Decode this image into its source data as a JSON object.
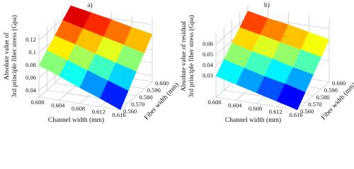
{
  "chart_data": [
    {
      "type": "surface",
      "title": "a)",
      "colormap": "jet",
      "xlabel": "Channel width (mm)",
      "ylabel": "Fiber width (mm)",
      "zlabel": [
        "Absolute value of",
        "3rd principle fiber stress (Gpa)"
      ],
      "x": [
        0.6,
        0.604,
        0.608,
        0.612,
        0.616
      ],
      "y": [
        0.56,
        0.57,
        0.58,
        0.59,
        0.6
      ],
      "z": [
        [
          0.08,
          0.068,
          0.055,
          0.043,
          0.03
        ],
        [
          0.093,
          0.082,
          0.071,
          0.06,
          0.049
        ],
        [
          0.105,
          0.096,
          0.086,
          0.077,
          0.068
        ],
        [
          0.118,
          0.11,
          0.102,
          0.094,
          0.086
        ],
        [
          0.13,
          0.124,
          0.118,
          0.111,
          0.105
        ]
      ],
      "xlim": [
        0.6,
        0.616
      ],
      "ylim": [
        0.56,
        0.6
      ],
      "zlim": [
        0.03,
        0.13
      ],
      "xticks": [
        {
          "value": 0.6,
          "label": "0.600"
        },
        {
          "value": 0.604,
          "label": "0.604"
        },
        {
          "value": 0.608,
          "label": "0.608"
        },
        {
          "value": 0.612,
          "label": "0.612"
        },
        {
          "value": 0.616,
          "label": "0.616"
        }
      ],
      "yticks": [
        {
          "value": 0.56,
          "label": "0.560"
        },
        {
          "value": 0.57,
          "label": "0.570"
        },
        {
          "value": 0.58,
          "label": "0.580"
        },
        {
          "value": 0.59,
          "label": "0.590"
        },
        {
          "value": 0.6,
          "label": "0.600"
        }
      ],
      "zticks": [
        0.04,
        0.06,
        0.08,
        0.1,
        0.12
      ]
    },
    {
      "type": "surface",
      "title": "b)",
      "colormap": "jet",
      "xlabel": "Channel width (mm)",
      "ylabel": "Fiber width (mm)",
      "zlabel": [
        "Absolute value of residual",
        "3rd principle fiber stress (Gpa)"
      ],
      "x": [
        0.6,
        0.604,
        0.608,
        0.612,
        0.616
      ],
      "y": [
        0.56,
        0.57,
        0.58,
        0.59,
        0.6
      ],
      "z": [
        [
          0.03,
          0.025,
          0.02,
          0.015,
          0.01
        ],
        [
          0.039,
          0.034,
          0.029,
          0.025,
          0.02
        ],
        [
          0.048,
          0.043,
          0.039,
          0.034,
          0.03
        ],
        [
          0.056,
          0.052,
          0.048,
          0.044,
          0.04
        ],
        [
          0.065,
          0.061,
          0.058,
          0.054,
          0.05
        ]
      ],
      "xlim": [
        0.6,
        0.616
      ],
      "ylim": [
        0.56,
        0.6
      ],
      "zlim": [
        0.01,
        0.07
      ],
      "xticks": [
        {
          "value": 0.6,
          "label": "0.600"
        },
        {
          "value": 0.604,
          "label": "0.604"
        },
        {
          "value": 0.608,
          "label": "0.608"
        },
        {
          "value": 0.612,
          "label": "0.612"
        },
        {
          "value": 0.616,
          "label": "0.616"
        }
      ],
      "yticks": [
        {
          "value": 0.56,
          "label": "0.560"
        },
        {
          "value": 0.57,
          "label": "0.570"
        },
        {
          "value": 0.58,
          "label": "0.580"
        },
        {
          "value": 0.59,
          "label": "0.590"
        },
        {
          "value": 0.6,
          "label": "0.600"
        }
      ],
      "zticks": [
        0.03,
        0.04,
        0.05,
        0.06
      ]
    }
  ]
}
